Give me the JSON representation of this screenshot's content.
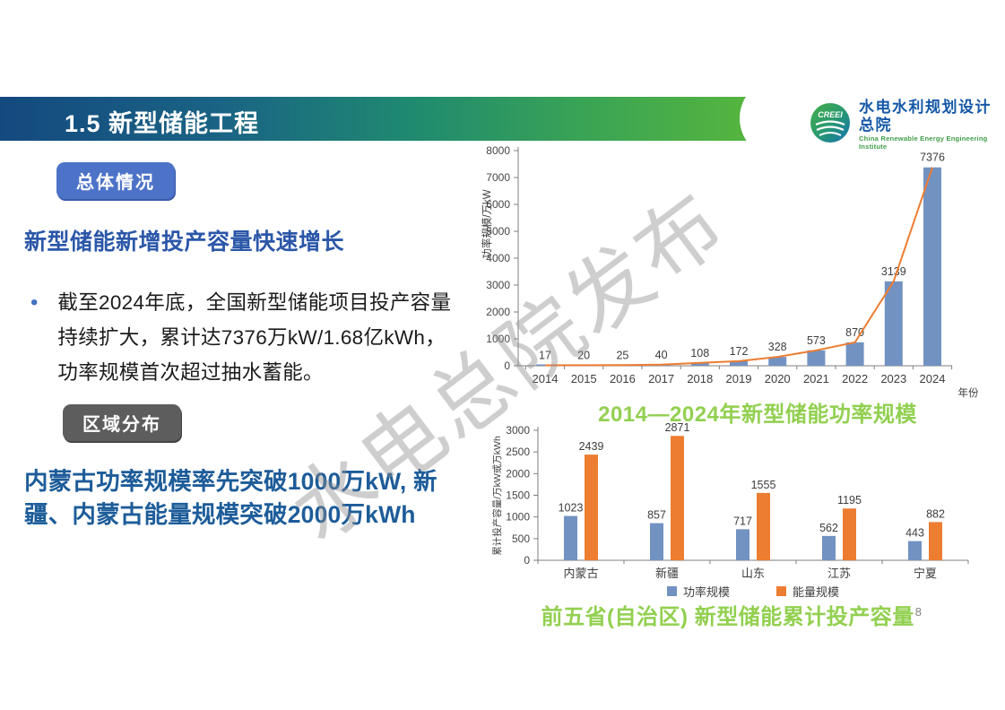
{
  "slide": {
    "title": "1.5 新型储能工程",
    "page_number": "8"
  },
  "logo": {
    "acronym": "CREEI",
    "name_cn": "水电水利规划设计总院",
    "name_en": "China Renewable Energy Engineering Institute"
  },
  "left_panel": {
    "badge_overview": "总体情况",
    "heading": "新型储能新增投产容量快速增长",
    "bullet_marker": "•",
    "bullet_text": "截至2024年底，全国新型储能项目投产容量持续扩大，累计达7376万kW/1.68亿kWh，功率规模首次超过抽水蓄能。",
    "badge_region": "区域分布",
    "statement": "内蒙古功率规模率先突破1000万kW, 新疆、内蒙古能量规模突破2000万kWh"
  },
  "watermark": "水电总院发布",
  "chart_data": [
    {
      "type": "bar",
      "title": "2014—2024年新型储能功率规模",
      "categories": [
        "2014",
        "2015",
        "2016",
        "2017",
        "2018",
        "2019",
        "2020",
        "2021",
        "2022",
        "2023",
        "2024"
      ],
      "values": [
        17,
        20,
        25,
        40,
        108,
        172,
        328,
        573,
        870,
        3139,
        7376
      ],
      "xlabel": "年份",
      "ylabel": "功率规模/万kW",
      "ylim": [
        0,
        8000
      ],
      "ytick_step": 1000,
      "grid": false,
      "bar_color": "#7292c2",
      "line_color": "#ed7d31",
      "has_trend_line": true
    },
    {
      "type": "bar",
      "title": "前五省(自治区) 新型储能累计投产容量",
      "categories": [
        "内蒙古",
        "新疆",
        "山东",
        "江苏",
        "宁夏"
      ],
      "series": [
        {
          "name": "功率规模",
          "color": "#7292c2",
          "values": [
            1023,
            857,
            717,
            562,
            443
          ]
        },
        {
          "name": "能量规模",
          "color": "#ed7d31",
          "values": [
            2439,
            2871,
            1555,
            1195,
            882
          ]
        }
      ],
      "xlabel": "",
      "ylabel": "累计投产容量/万kW或万kWh",
      "ylim": [
        0,
        3000
      ],
      "ytick_step": 500,
      "grid": false,
      "legend_position": "bottom"
    }
  ],
  "colors": {
    "title_gradient_left": "#14497f",
    "title_gradient_right": "#55b53e",
    "badge_blue": "#4d73c8",
    "badge_gray": "#5d5d5d",
    "heading_blue": "#2b57a8",
    "statement_blue": "#1d5c99",
    "caption_green": "#92d050",
    "bar_blue": "#7292c2",
    "bar_orange": "#ed7d31"
  }
}
